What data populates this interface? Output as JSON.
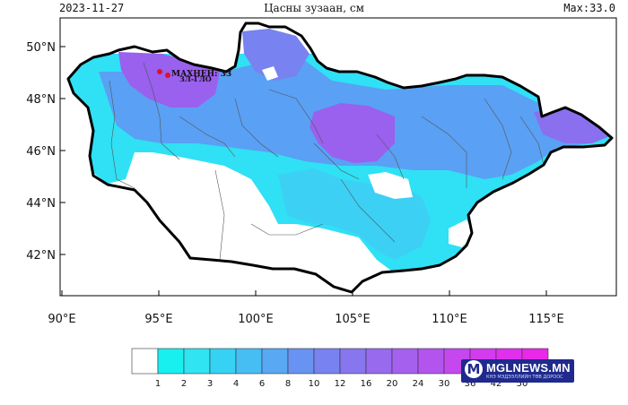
{
  "header": {
    "date": "2023-11-27",
    "title": "Цасны зузаан, см",
    "max": "Max:33.0"
  },
  "map": {
    "lat_labels": [
      "50°N",
      "48°N",
      "46°N",
      "44°N",
      "42°N"
    ],
    "lon_labels": [
      "90°E",
      "95°E",
      "100°E",
      "105°E",
      "110°E",
      "115°E"
    ],
    "station_label": "МАХНЕН: 33",
    "station_sublabel": "ЗЛ-ГЛО"
  },
  "colorbar": {
    "labels": [
      "1",
      "2",
      "3",
      "4",
      "6",
      "8",
      "10",
      "12",
      "16",
      "20",
      "24",
      "30",
      "36",
      "42",
      "50"
    ],
    "colors": [
      "#ffffff",
      "#18f0f0",
      "#30e4f2",
      "#36d2f4",
      "#46bef4",
      "#58a8f4",
      "#6893f2",
      "#7882f0",
      "#8876ee",
      "#986aee",
      "#a660ee",
      "#b454ee",
      "#c448ee",
      "#d23cee",
      "#e030ee",
      "#ea28ea"
    ],
    "land_fill": "#ffffff",
    "snow_light": "#30e0f4",
    "snow_mid": "#5aa0f4",
    "snow_heavy": "#9a60ee"
  },
  "logo": {
    "mark": "M",
    "name": "MGLNEWS.MN",
    "tagline": "КНЭ МЭДЭЭЛЛИЙН ТӨВ ДОРООС"
  }
}
